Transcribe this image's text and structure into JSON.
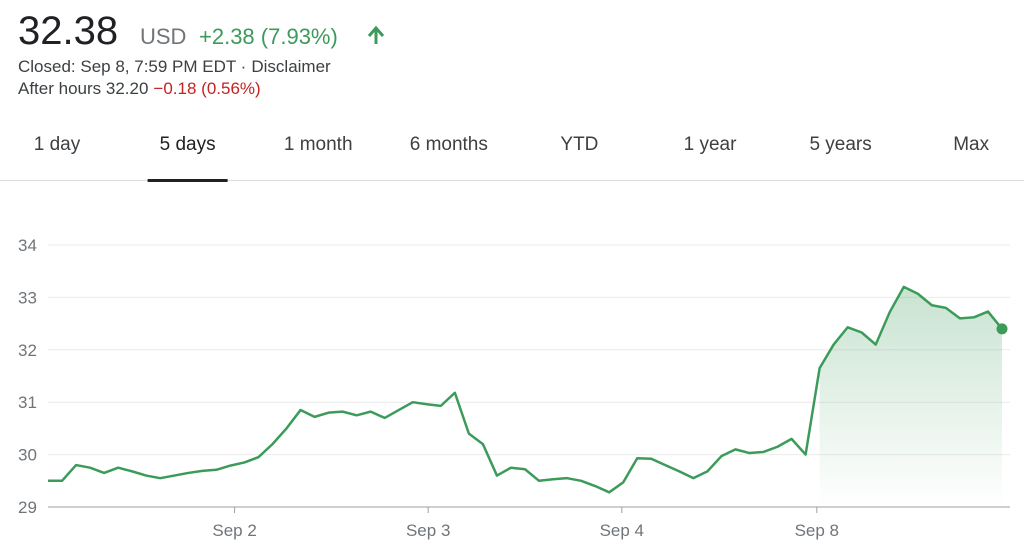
{
  "quote": {
    "price": "32.38",
    "currency": "USD",
    "change": "+2.38 (7.93%)",
    "status": "Closed: Sep 8, 7:59 PM EDT ·",
    "disclaimer": "Disclaimer",
    "after_hours": "After hours 32.20",
    "after_hours_change": "−0.18 (0.56%)"
  },
  "tabs": [
    "1 day",
    "5 days",
    "1 month",
    "6 months",
    "YTD",
    "1 year",
    "5 years",
    "Max"
  ],
  "selected_tab": 1,
  "chart_data": {
    "type": "line",
    "color": "#3d9b5a",
    "grid": true,
    "x": [
      0,
      1,
      2,
      3,
      4,
      5,
      6,
      7,
      8,
      9,
      10,
      11,
      12,
      13,
      14,
      15,
      16,
      17,
      18,
      19,
      20,
      21,
      22,
      23,
      24,
      25,
      26,
      27,
      28,
      29,
      30,
      31,
      32,
      33,
      34,
      35,
      36,
      37,
      38,
      39,
      40,
      41,
      42,
      43,
      44,
      45,
      46,
      47,
      48,
      49,
      50,
      51,
      52,
      53,
      54,
      55,
      56,
      57,
      58,
      59,
      60,
      61,
      62,
      63,
      64,
      65,
      66,
      67,
      68
    ],
    "values": [
      29.5,
      29.5,
      29.8,
      29.75,
      29.65,
      29.75,
      29.68,
      29.6,
      29.55,
      29.6,
      29.65,
      29.69,
      29.71,
      29.79,
      29.85,
      29.95,
      30.2,
      30.5,
      30.85,
      30.72,
      30.8,
      30.82,
      30.75,
      30.82,
      30.7,
      30.85,
      31.0,
      30.96,
      30.93,
      31.18,
      30.4,
      30.2,
      29.6,
      29.75,
      29.72,
      29.5,
      29.53,
      29.55,
      29.5,
      29.4,
      29.28,
      29.47,
      29.93,
      29.92,
      29.8,
      29.68,
      29.55,
      29.68,
      29.97,
      30.1,
      30.03,
      30.05,
      30.15,
      30.3,
      30.0,
      31.65,
      32.1,
      32.43,
      32.33,
      32.1,
      32.72,
      33.2,
      33.07,
      32.85,
      32.8,
      32.6,
      32.62,
      32.73,
      32.4
    ],
    "xlim": [
      0,
      68
    ],
    "xticks": [
      {
        "value": 13.3,
        "label": "Sep 2"
      },
      {
        "value": 27.1,
        "label": "Sep 3"
      },
      {
        "value": 40.9,
        "label": "Sep 4"
      },
      {
        "value": 54.8,
        "label": "Sep 8"
      }
    ],
    "ylim": [
      29,
      34
    ],
    "yticks": [
      29,
      30,
      31,
      32,
      33,
      34
    ]
  }
}
